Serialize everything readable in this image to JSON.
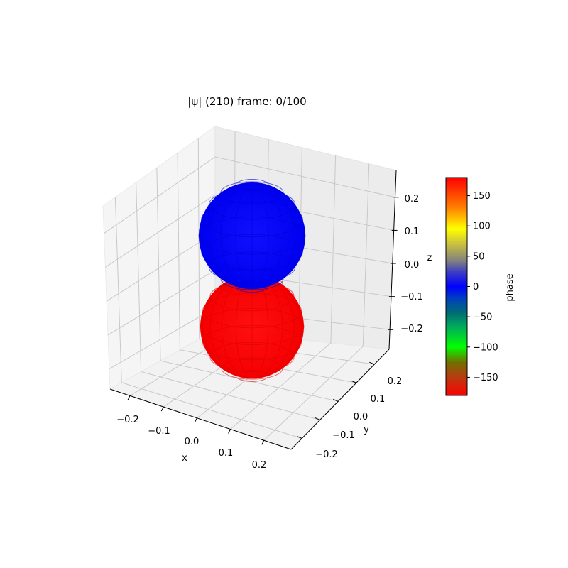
{
  "chart_data": {
    "type": "3d-surface",
    "title": "|ψ| (210) frame: 0/100",
    "xlabel": "x",
    "ylabel": "y",
    "zlabel": "z",
    "xlim": [
      -0.27,
      0.27
    ],
    "ylim": [
      -0.27,
      0.27
    ],
    "zlim": [
      -0.27,
      0.27
    ],
    "x_ticks": [
      "−0.2",
      "−0.1",
      "0.0",
      "0.1",
      "0.2"
    ],
    "y_ticks": [
      "−0.2",
      "−0.1",
      "0.0",
      "0.1",
      "0.2"
    ],
    "z_ticks": [
      "−0.2",
      "−0.1",
      "0.0",
      "0.1",
      "0.2"
    ],
    "grid": true,
    "surfaces": [
      {
        "lobe": "upper",
        "center_z": 0.12,
        "phase": 0,
        "color": "#0000ff"
      },
      {
        "lobe": "lower",
        "center_z": -0.12,
        "phase": 180,
        "color": "#ff0000"
      }
    ],
    "colorbar": {
      "label": "phase",
      "range": [
        -180,
        180
      ],
      "ticks": [
        150,
        100,
        50,
        0,
        -50,
        -100,
        -150
      ],
      "tick_labels": [
        "150",
        "100",
        "50",
        "0",
        "−50",
        "−100",
        "−150"
      ],
      "stops": [
        {
          "v": -180,
          "c": "#ff0000"
        },
        {
          "v": -150,
          "c": "#b83a10"
        },
        {
          "v": -125,
          "c": "#707000"
        },
        {
          "v": -100,
          "c": "#00ff00"
        },
        {
          "v": -65,
          "c": "#00a860"
        },
        {
          "v": -45,
          "c": "#007070"
        },
        {
          "v": -20,
          "c": "#0040c0"
        },
        {
          "v": 0,
          "c": "#0000ff"
        },
        {
          "v": 25,
          "c": "#4040c0"
        },
        {
          "v": 42,
          "c": "#808080"
        },
        {
          "v": 70,
          "c": "#c8c040"
        },
        {
          "v": 95,
          "c": "#ffff00"
        },
        {
          "v": 130,
          "c": "#ff8000"
        },
        {
          "v": 180,
          "c": "#ff0000"
        }
      ]
    }
  }
}
